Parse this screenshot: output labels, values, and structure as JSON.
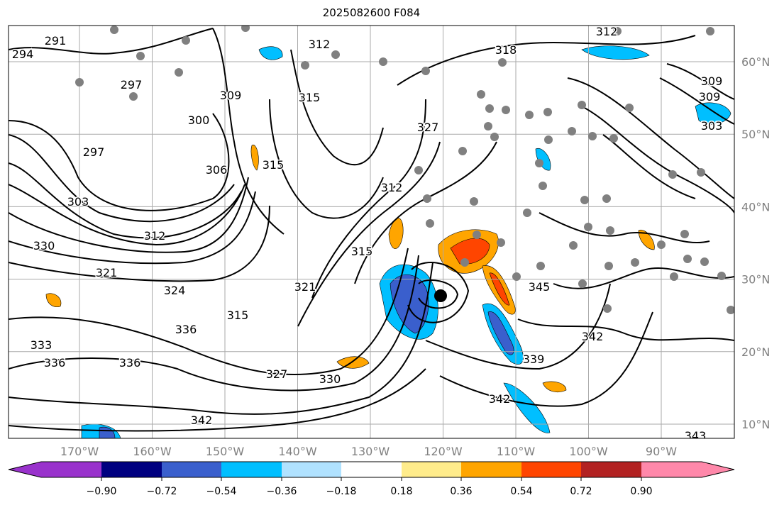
{
  "title": "2025082600 F084",
  "map": {
    "lon_ticks": [
      "170°W",
      "160°W",
      "150°W",
      "140°W",
      "130°W",
      "120°W",
      "110°W",
      "100°W",
      "90°W"
    ],
    "lat_ticks": [
      "60°N",
      "50°N",
      "40°N",
      "30°N",
      "20°N",
      "10°N"
    ],
    "contour_labels": [
      "291",
      "294",
      "297",
      "297",
      "300",
      "309",
      "312",
      "315",
      "318",
      "312",
      "315",
      "327",
      "309",
      "309",
      "303",
      "306",
      "303",
      "312",
      "315",
      "312",
      "330",
      "321",
      "324",
      "315",
      "321",
      "336",
      "345",
      "333",
      "336",
      "336",
      "327",
      "330",
      "339",
      "342",
      "342",
      "342",
      "343"
    ],
    "station_marker_color": "#808080",
    "cyclone_marker": "black-dot"
  },
  "colorbar": {
    "ticks": [
      "−0.90",
      "−0.72",
      "−0.54",
      "−0.36",
      "−0.18",
      "0.18",
      "0.36",
      "0.54",
      "0.72",
      "0.90"
    ],
    "colors": [
      "#9932cc",
      "#000080",
      "#3a5fcd",
      "#00bfff",
      "#b0e2ff",
      "#ffffff",
      "#ffec8b",
      "#ffa500",
      "#ff4500",
      "#b22222",
      "#ff88aa"
    ]
  }
}
